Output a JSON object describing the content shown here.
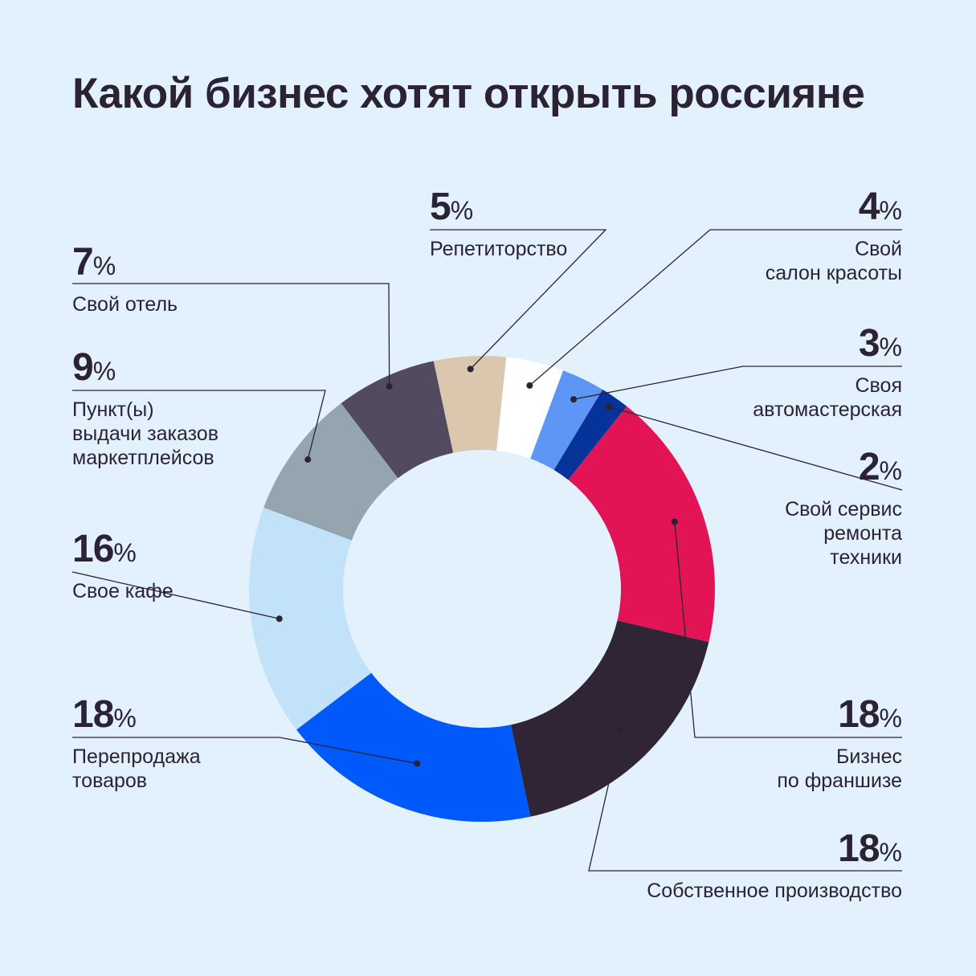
{
  "title": "Какой бизнес хотят открыть россияне",
  "percent_sign": "%",
  "chart_data": {
    "type": "pie",
    "donut": true,
    "title": "Какой бизнес хотят открыть россияне",
    "unit": "%",
    "slices": [
      {
        "label": "Репетиторство",
        "value": 5,
        "color": "#dbc6ae"
      },
      {
        "label": "Свой салон красоты",
        "value": 4,
        "color": "#ffffff"
      },
      {
        "label": "Своя автомастерская",
        "value": 3,
        "color": "#5e96f5"
      },
      {
        "label": "Свой сервис ремонта техники",
        "value": 2,
        "color": "#05339a"
      },
      {
        "label": "Бизнес по франшизе",
        "value": 18,
        "color": "#e31456"
      },
      {
        "label": "Собственное производство",
        "value": 18,
        "color": "#2f2536"
      },
      {
        "label": "Перепродажа товаров",
        "value": 18,
        "color": "#0059fa"
      },
      {
        "label": "Свое кафе",
        "value": 16,
        "color": "#c2e2fa"
      },
      {
        "label": "Пункт(ы) выдачи заказов маркетплейсов",
        "value": 9,
        "color": "#95a5af"
      },
      {
        "label": "Свой отель",
        "value": 7,
        "color": "#524b5f"
      }
    ]
  },
  "labels": [
    {
      "value": "5",
      "text": "Репетиторство"
    },
    {
      "value": "4",
      "text": "Свой\nсалон красоты"
    },
    {
      "value": "3",
      "text": "Своя\nавтомастерская"
    },
    {
      "value": "2",
      "text": "Свой сервис\nремонта\nтехники"
    },
    {
      "value": "18",
      "text": "Бизнес\nпо франшизе"
    },
    {
      "value": "18",
      "text": "Собственное производство"
    },
    {
      "value": "18",
      "text": "Перепродажа\nтоваров"
    },
    {
      "value": "16",
      "text": "Свое кафе"
    },
    {
      "value": "9",
      "text": "Пункт(ы)\nвыдачи заказов\nмаркетплейсов"
    },
    {
      "value": "7",
      "text": "Свой отель"
    }
  ]
}
